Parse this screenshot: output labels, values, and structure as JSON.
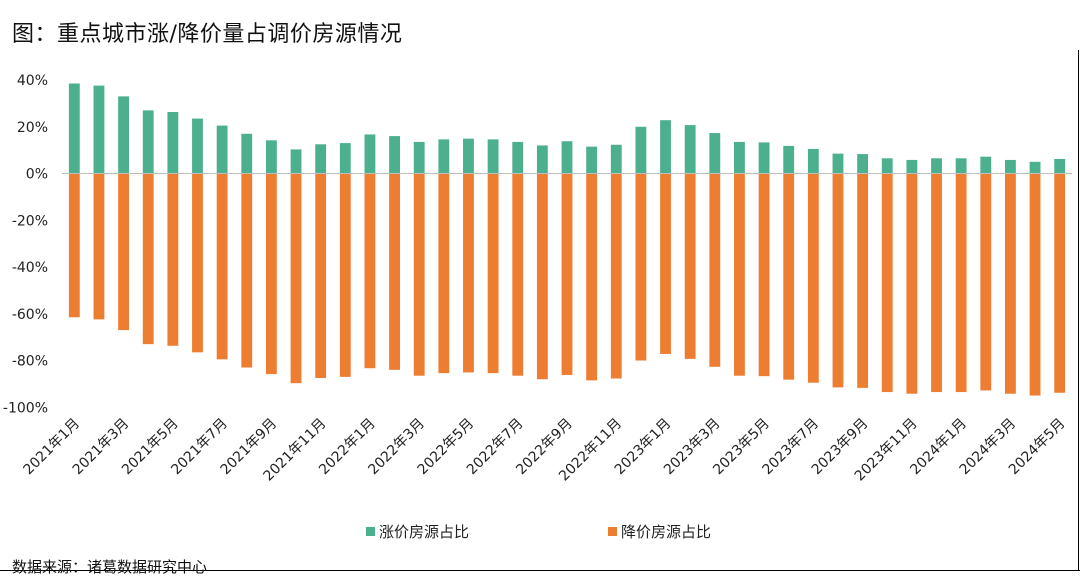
{
  "title": "图：重点城市涨/降价量占调价房源情况",
  "source": "数据来源：诸葛数据研究中心",
  "chart_data": {
    "type": "bar",
    "title": "图：重点城市涨/降价量占调价房源情况",
    "xlabel": "",
    "ylabel": "",
    "ylim": [
      -100,
      40
    ],
    "y_ticks": [
      "40%",
      "20%",
      "0%",
      "-20%",
      "-40%",
      "-60%",
      "-80%",
      "-100%"
    ],
    "y_tick_values": [
      40,
      20,
      0,
      -20,
      -40,
      -60,
      -80,
      -100
    ],
    "grid": false,
    "legend_position": "bottom",
    "categories": [
      "2021年1月",
      "2021年2月",
      "2021年3月",
      "2021年4月",
      "2021年5月",
      "2021年6月",
      "2021年7月",
      "2021年8月",
      "2021年9月",
      "2021年10月",
      "2021年11月",
      "2021年12月",
      "2022年1月",
      "2022年2月",
      "2022年3月",
      "2022年4月",
      "2022年5月",
      "2022年6月",
      "2022年7月",
      "2022年8月",
      "2022年9月",
      "2022年10月",
      "2022年11月",
      "2022年12月",
      "2023年1月",
      "2023年2月",
      "2023年3月",
      "2023年4月",
      "2023年5月",
      "2023年6月",
      "2023年7月",
      "2023年8月",
      "2023年9月",
      "2023年10月",
      "2023年11月",
      "2023年12月",
      "2024年1月",
      "2024年2月",
      "2024年3月",
      "2024年4月",
      "2024年5月"
    ],
    "shown_tick_labels": [
      "2021年1月",
      "2021年3月",
      "2021年5月",
      "2021年7月",
      "2021年9月",
      "2021年11月",
      "2022年1月",
      "2022年3月",
      "2022年5月",
      "2022年7月",
      "2022年9月",
      "2022年11月",
      "2023年1月",
      "2023年3月",
      "2023年5月",
      "2023年7月",
      "2023年9月",
      "2023年11月",
      "2024年1月",
      "2024年3月",
      "2024年5月"
    ],
    "series": [
      {
        "name": "涨价房源占比",
        "color": "#4caf8e",
        "values": [
          38.5,
          37.6,
          33,
          27,
          26.3,
          23.5,
          20.5,
          17,
          14.2,
          10.3,
          12.5,
          13,
          16.7,
          16,
          13.5,
          14.6,
          14.9,
          14.6,
          13.5,
          12,
          13.8,
          11.5,
          12.3,
          20,
          22.8,
          20.7,
          17.3,
          13.5,
          13.3,
          11.8,
          10.5,
          8.5,
          8.3,
          6.5,
          5.8,
          6.5,
          6.5,
          7.2,
          5.8,
          5,
          6.2
        ]
      },
      {
        "name": "降价房源占比",
        "color": "#ed7d31",
        "values": [
          -61.5,
          -62.4,
          -67,
          -73,
          -73.7,
          -76.5,
          -79.5,
          -83,
          -85.8,
          -89.7,
          -87.5,
          -87,
          -83.3,
          -84,
          -86.5,
          -85.4,
          -85.1,
          -85.4,
          -86.5,
          -88,
          -86.2,
          -88.5,
          -87.7,
          -80,
          -77.2,
          -79.3,
          -82.7,
          -86.5,
          -86.7,
          -88.2,
          -89.5,
          -91.5,
          -91.7,
          -93.5,
          -94.2,
          -93.5,
          -93.5,
          -92.8,
          -94.2,
          -95,
          -93.8
        ]
      }
    ]
  }
}
